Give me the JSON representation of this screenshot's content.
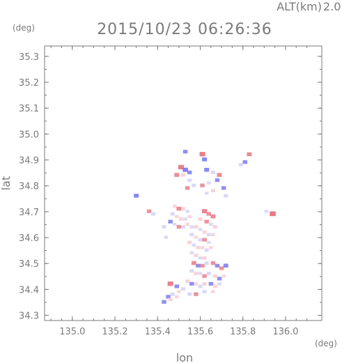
{
  "header": {
    "altitude_label": "ALT(km)",
    "altitude_value": "2.0",
    "timestamp": "2015/10/23 06:26:36"
  },
  "chart_data": {
    "type": "heatmap",
    "xlabel": "lon",
    "ylabel": "lat",
    "x_unit": "(deg)",
    "y_unit": "(deg)",
    "xlim": [
      134.87,
      136.17
    ],
    "ylim": [
      34.28,
      35.34
    ],
    "x_ticks": [
      "135.0",
      "135.2",
      "135.4",
      "135.6",
      "135.8",
      "136.0"
    ],
    "y_ticks": [
      "34.3",
      "34.4",
      "34.5",
      "34.6",
      "34.7",
      "34.8",
      "34.9",
      "35.0",
      "35.1",
      "35.2",
      "35.3"
    ],
    "grid": false,
    "colors": {
      "positive": "#e8737f",
      "positive_light": "#f6c3c9",
      "negative": "#6f6ff0",
      "negative_light": "#c9c9f8",
      "axis": "#7a7a7a"
    },
    "cells": [
      {
        "lon": 135.53,
        "lat": 34.93,
        "sign": "neg",
        "level": 0.5
      },
      {
        "lon": 135.61,
        "lat": 34.92,
        "sign": "pos",
        "level": 0.8
      },
      {
        "lon": 135.62,
        "lat": 34.9,
        "sign": "neg",
        "level": 0.6
      },
      {
        "lon": 135.83,
        "lat": 34.92,
        "sign": "pos",
        "level": 0.6
      },
      {
        "lon": 135.81,
        "lat": 34.89,
        "sign": "neg",
        "level": 0.5
      },
      {
        "lon": 135.79,
        "lat": 34.88,
        "sign": "neg",
        "level": 0.4
      },
      {
        "lon": 135.51,
        "lat": 34.87,
        "sign": "pos",
        "level": 0.8
      },
      {
        "lon": 135.53,
        "lat": 34.86,
        "sign": "neg",
        "level": 0.7
      },
      {
        "lon": 135.55,
        "lat": 34.85,
        "sign": "neg",
        "level": 0.5
      },
      {
        "lon": 135.49,
        "lat": 34.84,
        "sign": "pos",
        "level": 0.6
      },
      {
        "lon": 135.52,
        "lat": 34.84,
        "sign": "pos",
        "level": 0.4
      },
      {
        "lon": 135.55,
        "lat": 34.82,
        "sign": "neg",
        "level": 0.4
      },
      {
        "lon": 135.63,
        "lat": 34.86,
        "sign": "neg",
        "level": 0.6
      },
      {
        "lon": 135.66,
        "lat": 34.85,
        "sign": "neg",
        "level": 0.4
      },
      {
        "lon": 135.69,
        "lat": 34.84,
        "sign": "pos",
        "level": 0.6
      },
      {
        "lon": 135.68,
        "lat": 34.82,
        "sign": "neg",
        "level": 0.5
      },
      {
        "lon": 135.64,
        "lat": 34.81,
        "sign": "neg",
        "level": 0.3
      },
      {
        "lon": 135.61,
        "lat": 34.8,
        "sign": "pos",
        "level": 0.5
      },
      {
        "lon": 135.57,
        "lat": 34.8,
        "sign": "neg",
        "level": 0.4
      },
      {
        "lon": 135.54,
        "lat": 34.79,
        "sign": "pos",
        "level": 0.5
      },
      {
        "lon": 135.66,
        "lat": 34.78,
        "sign": "pos",
        "level": 0.4
      },
      {
        "lon": 135.71,
        "lat": 34.79,
        "sign": "neg",
        "level": 0.5
      },
      {
        "lon": 135.72,
        "lat": 34.76,
        "sign": "neg",
        "level": 0.4
      },
      {
        "lon": 135.63,
        "lat": 34.77,
        "sign": "neg",
        "level": 0.3
      },
      {
        "lon": 135.3,
        "lat": 34.76,
        "sign": "neg",
        "level": 0.6
      },
      {
        "lon": 135.36,
        "lat": 34.7,
        "sign": "pos",
        "level": 0.5
      },
      {
        "lon": 135.38,
        "lat": 34.69,
        "sign": "neg",
        "level": 0.4
      },
      {
        "lon": 135.91,
        "lat": 34.7,
        "sign": "neg",
        "level": 0.3
      },
      {
        "lon": 135.94,
        "lat": 34.69,
        "sign": "pos",
        "level": 0.9
      },
      {
        "lon": 135.48,
        "lat": 34.72,
        "sign": "pos",
        "level": 0.3
      },
      {
        "lon": 135.5,
        "lat": 34.71,
        "sign": "pos",
        "level": 0.6
      },
      {
        "lon": 135.52,
        "lat": 34.71,
        "sign": "pos",
        "level": 0.4
      },
      {
        "lon": 135.54,
        "lat": 34.7,
        "sign": "neg",
        "level": 0.3
      },
      {
        "lon": 135.47,
        "lat": 34.69,
        "sign": "neg",
        "level": 0.4
      },
      {
        "lon": 135.49,
        "lat": 34.68,
        "sign": "pos",
        "level": 0.3
      },
      {
        "lon": 135.51,
        "lat": 34.67,
        "sign": "pos",
        "level": 0.4
      },
      {
        "lon": 135.53,
        "lat": 34.67,
        "sign": "neg",
        "level": 0.3
      },
      {
        "lon": 135.55,
        "lat": 34.68,
        "sign": "pos",
        "level": 0.3
      },
      {
        "lon": 135.46,
        "lat": 34.66,
        "sign": "neg",
        "level": 0.5
      },
      {
        "lon": 135.48,
        "lat": 34.65,
        "sign": "neg",
        "level": 0.3
      },
      {
        "lon": 135.5,
        "lat": 34.64,
        "sign": "pos",
        "level": 0.5
      },
      {
        "lon": 135.52,
        "lat": 34.64,
        "sign": "neg",
        "level": 0.4
      },
      {
        "lon": 135.54,
        "lat": 34.65,
        "sign": "pos",
        "level": 0.3
      },
      {
        "lon": 135.56,
        "lat": 34.64,
        "sign": "neg",
        "level": 0.3
      },
      {
        "lon": 135.62,
        "lat": 34.7,
        "sign": "pos",
        "level": 0.7
      },
      {
        "lon": 135.64,
        "lat": 34.69,
        "sign": "pos",
        "level": 0.5
      },
      {
        "lon": 135.66,
        "lat": 34.68,
        "sign": "pos",
        "level": 0.6
      },
      {
        "lon": 135.6,
        "lat": 34.67,
        "sign": "pos",
        "level": 0.4
      },
      {
        "lon": 135.63,
        "lat": 34.66,
        "sign": "pos",
        "level": 0.5
      },
      {
        "lon": 135.65,
        "lat": 34.65,
        "sign": "neg",
        "level": 0.3
      },
      {
        "lon": 135.67,
        "lat": 34.64,
        "sign": "pos",
        "level": 0.4
      },
      {
        "lon": 135.58,
        "lat": 34.64,
        "sign": "pos",
        "level": 0.4
      },
      {
        "lon": 135.6,
        "lat": 34.63,
        "sign": "neg",
        "level": 0.3
      },
      {
        "lon": 135.62,
        "lat": 34.62,
        "sign": "pos",
        "level": 0.4
      },
      {
        "lon": 135.64,
        "lat": 34.61,
        "sign": "neg",
        "level": 0.4
      },
      {
        "lon": 135.66,
        "lat": 34.61,
        "sign": "pos",
        "level": 0.3
      },
      {
        "lon": 135.56,
        "lat": 34.61,
        "sign": "neg",
        "level": 0.4
      },
      {
        "lon": 135.58,
        "lat": 34.6,
        "sign": "pos",
        "level": 0.3
      },
      {
        "lon": 135.6,
        "lat": 34.59,
        "sign": "neg",
        "level": 0.4
      },
      {
        "lon": 135.62,
        "lat": 34.59,
        "sign": "pos",
        "level": 0.5
      },
      {
        "lon": 135.64,
        "lat": 34.58,
        "sign": "neg",
        "level": 0.3
      },
      {
        "lon": 135.55,
        "lat": 34.58,
        "sign": "pos",
        "level": 0.4
      },
      {
        "lon": 135.57,
        "lat": 34.57,
        "sign": "neg",
        "level": 0.3
      },
      {
        "lon": 135.59,
        "lat": 34.56,
        "sign": "pos",
        "level": 0.4
      },
      {
        "lon": 135.61,
        "lat": 34.56,
        "sign": "pos",
        "level": 0.3
      },
      {
        "lon": 135.63,
        "lat": 34.55,
        "sign": "neg",
        "level": 0.4
      },
      {
        "lon": 135.65,
        "lat": 34.56,
        "sign": "pos",
        "level": 0.3
      },
      {
        "lon": 135.56,
        "lat": 34.54,
        "sign": "neg",
        "level": 0.3
      },
      {
        "lon": 135.58,
        "lat": 34.53,
        "sign": "pos",
        "level": 0.4
      },
      {
        "lon": 135.6,
        "lat": 34.52,
        "sign": "neg",
        "level": 0.3
      },
      {
        "lon": 135.62,
        "lat": 34.52,
        "sign": "pos",
        "level": 0.4
      },
      {
        "lon": 135.57,
        "lat": 34.5,
        "sign": "pos",
        "level": 0.6
      },
      {
        "lon": 135.59,
        "lat": 34.49,
        "sign": "neg",
        "level": 0.5
      },
      {
        "lon": 135.61,
        "lat": 34.49,
        "sign": "pos",
        "level": 0.5
      },
      {
        "lon": 135.63,
        "lat": 34.5,
        "sign": "neg",
        "level": 0.4
      },
      {
        "lon": 135.66,
        "lat": 34.5,
        "sign": "pos",
        "level": 0.5
      },
      {
        "lon": 135.68,
        "lat": 34.49,
        "sign": "neg",
        "level": 0.5
      },
      {
        "lon": 135.7,
        "lat": 34.48,
        "sign": "pos",
        "level": 0.5
      },
      {
        "lon": 135.72,
        "lat": 34.49,
        "sign": "neg",
        "level": 0.6
      },
      {
        "lon": 135.56,
        "lat": 34.47,
        "sign": "neg",
        "level": 0.4
      },
      {
        "lon": 135.58,
        "lat": 34.46,
        "sign": "pos",
        "level": 0.4
      },
      {
        "lon": 135.6,
        "lat": 34.46,
        "sign": "neg",
        "level": 0.3
      },
      {
        "lon": 135.62,
        "lat": 34.45,
        "sign": "pos",
        "level": 0.5
      },
      {
        "lon": 135.64,
        "lat": 34.46,
        "sign": "neg",
        "level": 0.4
      },
      {
        "lon": 135.67,
        "lat": 34.45,
        "sign": "pos",
        "level": 0.4
      },
      {
        "lon": 135.69,
        "lat": 34.44,
        "sign": "neg",
        "level": 0.5
      },
      {
        "lon": 135.71,
        "lat": 34.45,
        "sign": "pos",
        "level": 0.3
      },
      {
        "lon": 135.54,
        "lat": 34.43,
        "sign": "pos",
        "level": 0.4
      },
      {
        "lon": 135.56,
        "lat": 34.42,
        "sign": "neg",
        "level": 0.5
      },
      {
        "lon": 135.58,
        "lat": 34.42,
        "sign": "pos",
        "level": 0.3
      },
      {
        "lon": 135.6,
        "lat": 34.41,
        "sign": "neg",
        "level": 0.4
      },
      {
        "lon": 135.62,
        "lat": 34.42,
        "sign": "pos",
        "level": 0.4
      },
      {
        "lon": 135.65,
        "lat": 34.42,
        "sign": "neg",
        "level": 0.5
      },
      {
        "lon": 135.67,
        "lat": 34.41,
        "sign": "pos",
        "level": 0.4
      },
      {
        "lon": 135.69,
        "lat": 34.42,
        "sign": "neg",
        "level": 0.3
      },
      {
        "lon": 135.46,
        "lat": 34.42,
        "sign": "pos",
        "level": 0.8
      },
      {
        "lon": 135.49,
        "lat": 34.41,
        "sign": "neg",
        "level": 0.5
      },
      {
        "lon": 135.52,
        "lat": 34.4,
        "sign": "neg",
        "level": 0.4
      },
      {
        "lon": 135.5,
        "lat": 34.39,
        "sign": "pos",
        "level": 0.3
      },
      {
        "lon": 135.47,
        "lat": 34.38,
        "sign": "neg",
        "level": 0.4
      },
      {
        "lon": 135.45,
        "lat": 34.37,
        "sign": "neg",
        "level": 0.5
      },
      {
        "lon": 135.49,
        "lat": 34.37,
        "sign": "pos",
        "level": 0.3
      },
      {
        "lon": 135.43,
        "lat": 34.35,
        "sign": "neg",
        "level": 0.5
      },
      {
        "lon": 135.46,
        "lat": 34.36,
        "sign": "pos",
        "level": 0.4
      },
      {
        "lon": 135.55,
        "lat": 34.38,
        "sign": "neg",
        "level": 0.4
      },
      {
        "lon": 135.58,
        "lat": 34.38,
        "sign": "pos",
        "level": 0.5
      },
      {
        "lon": 135.62,
        "lat": 34.39,
        "sign": "neg",
        "level": 0.4
      },
      {
        "lon": 135.66,
        "lat": 34.39,
        "sign": "pos",
        "level": 0.3
      },
      {
        "lon": 135.43,
        "lat": 34.64,
        "sign": "neg",
        "level": 0.4
      },
      {
        "lon": 135.44,
        "lat": 34.6,
        "sign": "neg",
        "level": 0.3
      }
    ]
  }
}
